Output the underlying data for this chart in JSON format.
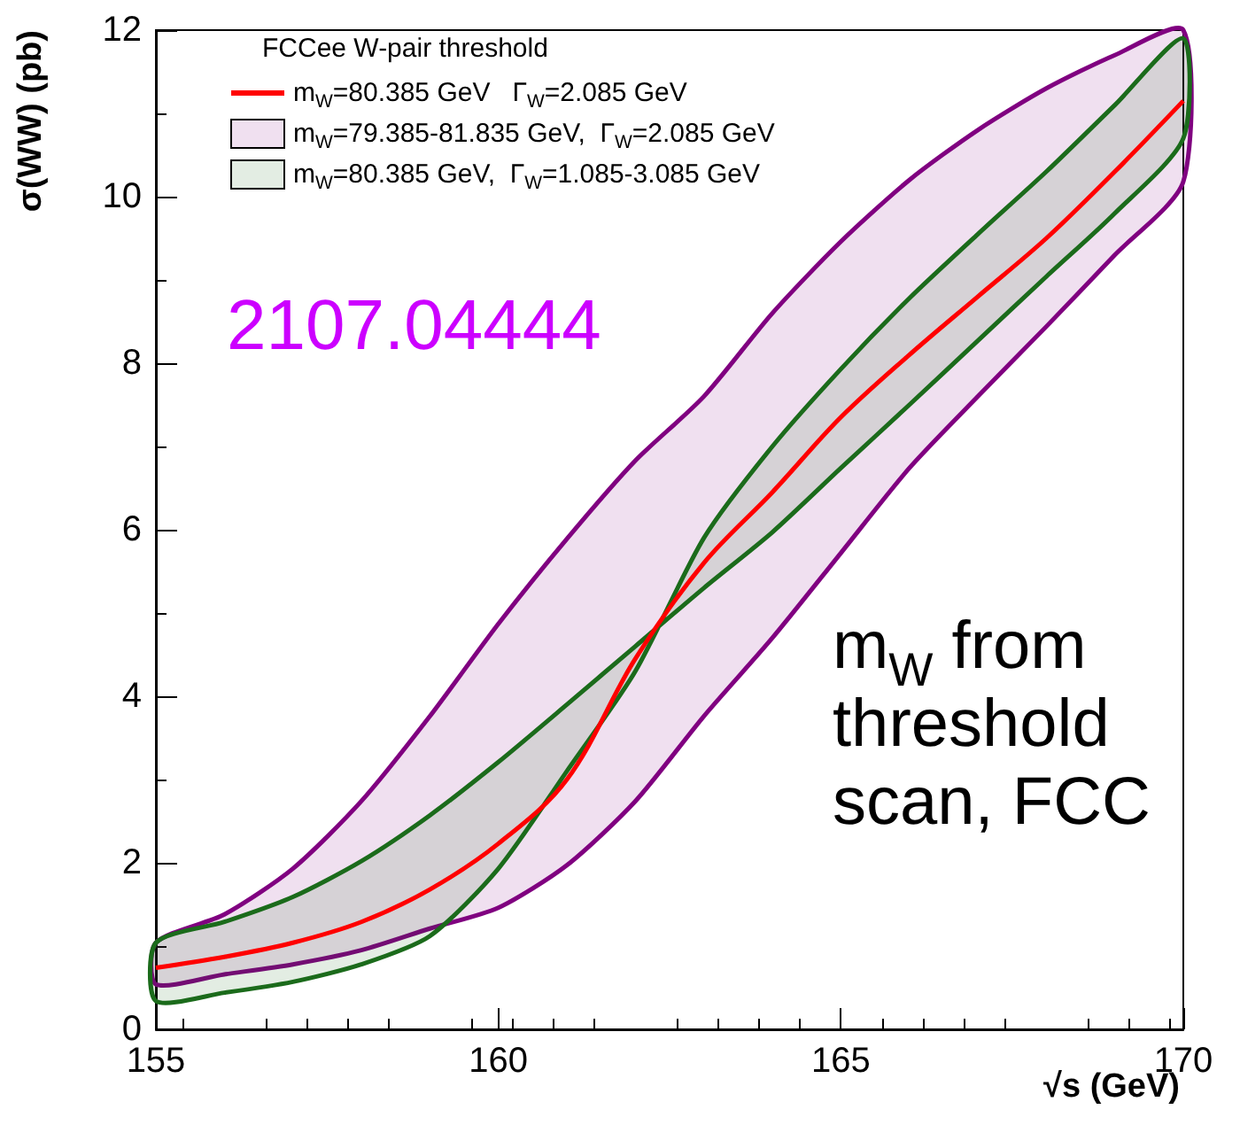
{
  "chart_data": {
    "type": "line",
    "xlabel": "√s (GeV)",
    "ylabel": "σ(WW) (pb)",
    "legend_title": "FCCee W-pair threshold",
    "x": [
      155,
      156,
      157,
      158,
      159,
      160,
      161,
      162,
      163,
      164,
      165,
      166,
      167,
      168,
      169,
      170
    ],
    "series": [
      {
        "name": "m$_{W}$=80.385 GeV   Γ$_{W}$=2.085 GeV",
        "color": "#ff0000",
        "values": [
          0.74,
          0.87,
          1.04,
          1.29,
          1.68,
          2.23,
          3.0,
          4.45,
          5.6,
          6.45,
          7.35,
          8.1,
          8.8,
          9.5,
          10.3,
          11.15
        ]
      },
      {
        "type": "area",
        "name": "m$_{W}$=79.385-81.835 GeV,  Γ$_{W}$=2.085 GeV",
        "color": "#800080",
        "values": [
          null,
          null,
          null,
          null,
          null,
          null,
          null,
          null,
          null,
          null,
          null,
          null,
          null,
          null,
          null,
          null
        ],
        "lower": [
          0.54,
          0.66,
          0.78,
          0.95,
          1.21,
          1.46,
          1.97,
          2.74,
          3.76,
          4.7,
          5.72,
          6.74,
          7.6,
          8.44,
          9.3,
          10.18
        ],
        "upper": [
          1.04,
          1.38,
          1.93,
          2.74,
          3.76,
          4.87,
          5.89,
          6.83,
          7.6,
          8.6,
          9.46,
          10.2,
          10.8,
          11.3,
          11.7,
          12.0
        ]
      },
      {
        "type": "area",
        "name": "m$_{W}$=80.385 GeV,  Γ$_{W}$=1.085-3.085 GeV",
        "color": "#1b6b1b",
        "values": [
          null,
          null,
          null,
          null,
          null,
          null,
          null,
          null,
          null,
          null,
          null,
          null,
          null,
          null,
          null,
          null
        ],
        "lower": [
          1.04,
          1.29,
          1.59,
          2.02,
          2.57,
          3.21,
          3.9,
          4.6,
          5.3,
          5.97,
          6.74,
          7.5,
          8.27,
          9.04,
          9.8,
          10.7
        ],
        "upper": [
          0.34,
          0.44,
          0.57,
          0.78,
          1.12,
          1.93,
          3.1,
          4.3,
          5.9,
          7.0,
          7.93,
          8.78,
          9.55,
          10.3,
          11.1,
          11.9
        ]
      }
    ],
    "xlim": [
      155,
      170
    ],
    "xticks": [
      155,
      160,
      165,
      170
    ],
    "ylim": [
      0,
      12
    ],
    "yticks": [
      0,
      2,
      4,
      6,
      8,
      10,
      12
    ],
    "grid": false,
    "legend": "top left",
    "annotations": [
      "2107.04444",
      "m$_{W}$ from\nthreshold\nscan, FCC"
    ]
  }
}
